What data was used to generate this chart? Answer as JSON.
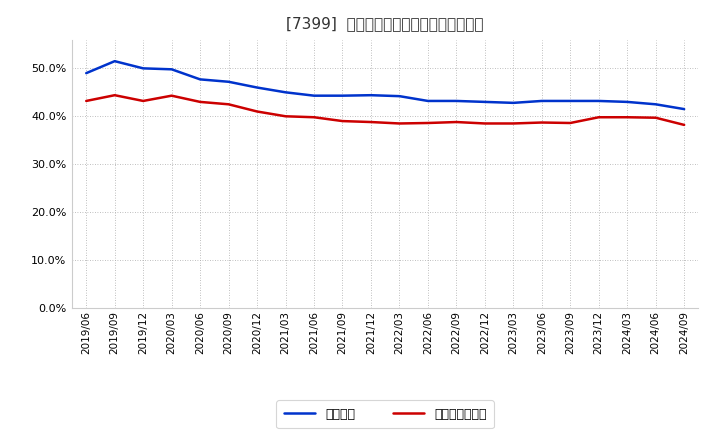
{
  "title": "[7399]  固定比率、固定長期適合率の推移",
  "x_labels": [
    "2019/06",
    "2019/09",
    "2019/12",
    "2020/03",
    "2020/06",
    "2020/09",
    "2020/12",
    "2021/03",
    "2021/06",
    "2021/09",
    "2021/12",
    "2022/03",
    "2022/06",
    "2022/09",
    "2022/12",
    "2023/03",
    "2023/06",
    "2023/09",
    "2023/12",
    "2024/03",
    "2024/06",
    "2024/09"
  ],
  "fixed_ratio": [
    0.49,
    0.515,
    0.5,
    0.498,
    0.477,
    0.472,
    0.46,
    0.45,
    0.443,
    0.443,
    0.444,
    0.442,
    0.432,
    0.432,
    0.43,
    0.428,
    0.432,
    0.432,
    0.432,
    0.43,
    0.425,
    0.415
  ],
  "fixed_long_ratio": [
    0.432,
    0.444,
    0.432,
    0.443,
    0.43,
    0.425,
    0.41,
    0.4,
    0.398,
    0.39,
    0.388,
    0.385,
    0.386,
    0.388,
    0.385,
    0.385,
    0.387,
    0.386,
    0.398,
    0.398,
    0.397,
    0.382
  ],
  "fixed_ratio_color": "#0033cc",
  "fixed_long_ratio_color": "#cc0000",
  "background_color": "#ffffff",
  "grid_color": "#aaaaaa",
  "ylim": [
    0.0,
    0.56
  ],
  "yticks": [
    0.0,
    0.1,
    0.2,
    0.3,
    0.4,
    0.5
  ],
  "legend_fixed": "固定比率",
  "legend_fixed_long": "固定長期適合率",
  "line_width": 1.8,
  "title_fontsize": 11,
  "tick_fontsize": 7.5,
  "ytick_fontsize": 8
}
